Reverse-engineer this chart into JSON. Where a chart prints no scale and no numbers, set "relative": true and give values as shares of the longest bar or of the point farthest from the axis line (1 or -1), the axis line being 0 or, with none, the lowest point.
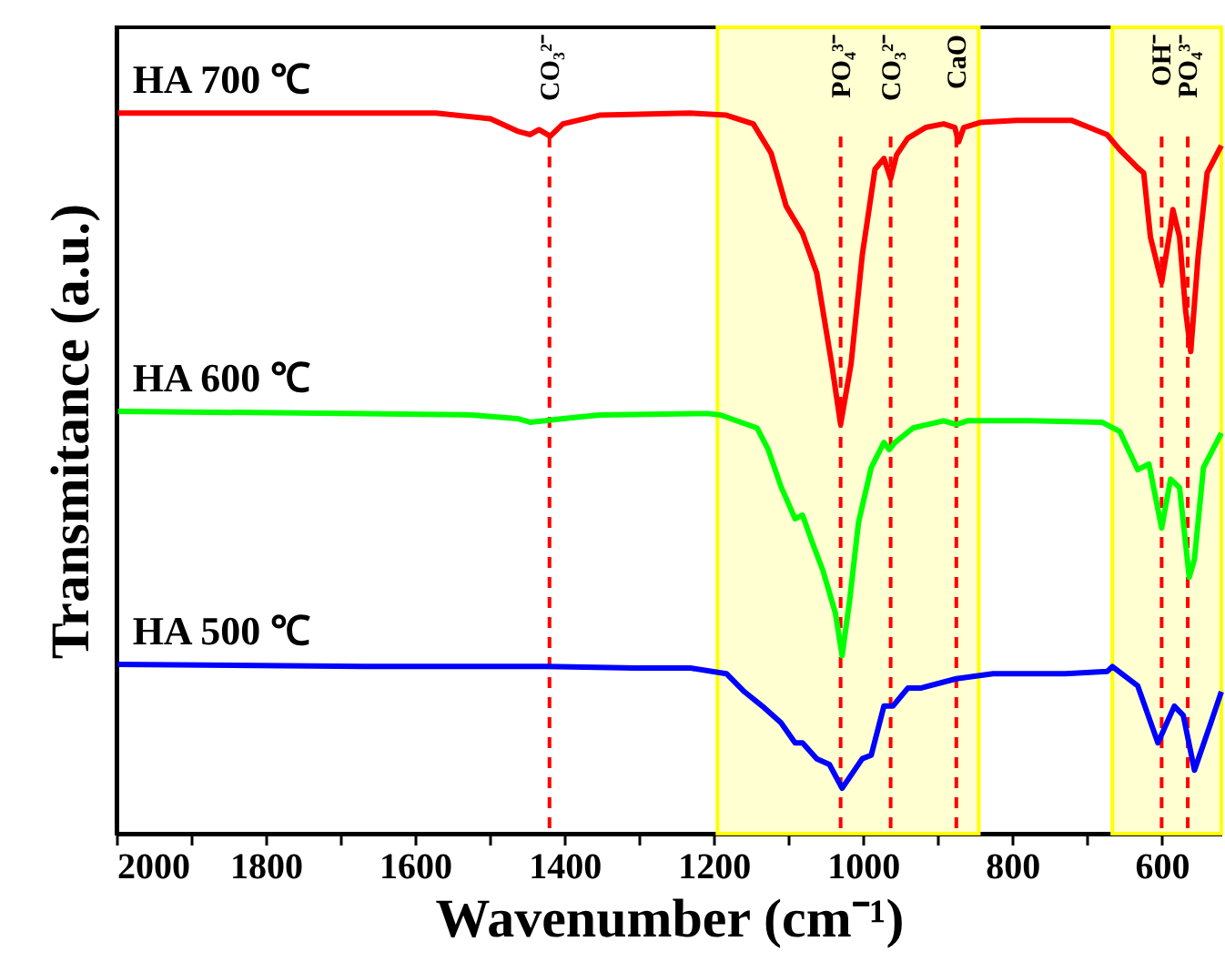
{
  "chart_data": {
    "type": "line",
    "relative": true,
    "xlabel": "Wavenumber (cm⁻¹)",
    "ylabel": "Transmitance (a.u.)",
    "xlim": [
      2000,
      520
    ],
    "xticks": [
      2000,
      {
        "value": 1900,
        "label": null
      },
      1800,
      {
        "value": 1700,
        "label": null
      },
      1600,
      {
        "value": 1500,
        "label": null
      },
      1400,
      {
        "value": 1300,
        "label": null
      },
      1200,
      {
        "value": 1100,
        "label": null
      },
      1000,
      {
        "value": 900,
        "label": null
      },
      800,
      {
        "value": 700,
        "label": null
      },
      600
    ],
    "tick_labels": "x",
    "grid": false,
    "marker": "none",
    "line_style": "solid",
    "series": [
      {
        "name": "HA 700 ℃",
        "color": "#ff0000",
        "x": [
          1998,
          1791,
          1572,
          1499,
          1463,
          1446,
          1434,
          1419,
          1402,
          1353,
          1232,
          1183,
          1147,
          1123,
          1103,
          1081,
          1062,
          1042,
          1030,
          1016,
          1001,
          984,
          972,
          963,
          955,
          940,
          916,
          892,
          877,
          872,
          865,
          843,
          794,
          721,
          697,
          673,
          656,
          632,
          624,
          615,
          600,
          588,
          585,
          576,
          568,
          561,
          551,
          539,
          520
        ],
        "values": [
          1.0,
          1.0,
          1.0,
          0.992,
          0.975,
          0.97,
          0.977,
          0.968,
          0.985,
          0.997,
          1.0,
          0.997,
          0.985,
          0.944,
          0.871,
          0.833,
          0.778,
          0.652,
          0.568,
          0.652,
          0.803,
          0.922,
          0.937,
          0.909,
          0.942,
          0.965,
          0.98,
          0.985,
          0.98,
          0.96,
          0.98,
          0.987,
          0.99,
          0.99,
          0.98,
          0.97,
          0.949,
          0.924,
          0.917,
          0.828,
          0.765,
          0.841,
          0.866,
          0.828,
          0.727,
          0.669,
          0.803,
          0.917,
          0.955
        ]
      },
      {
        "name": "HA 600 ℃",
        "color": "#00ff00",
        "x": [
          1998,
          1669,
          1524,
          1463,
          1446,
          1426,
          1402,
          1353,
          1208,
          1191,
          1142,
          1127,
          1110,
          1091,
          1081,
          1069,
          1054,
          1037,
          1028,
          1018,
          1006,
          989,
          972,
          965,
          957,
          933,
          892,
          875,
          860,
          777,
          680,
          656,
          632,
          617,
          600,
          588,
          576,
          563,
          556,
          544,
          520
        ],
        "values": [
          0.586,
          0.583,
          0.581,
          0.576,
          0.571,
          0.573,
          0.576,
          0.581,
          0.583,
          0.581,
          0.563,
          0.533,
          0.482,
          0.437,
          0.442,
          0.407,
          0.366,
          0.306,
          0.247,
          0.323,
          0.432,
          0.508,
          0.543,
          0.533,
          0.543,
          0.563,
          0.573,
          0.568,
          0.573,
          0.573,
          0.571,
          0.558,
          0.505,
          0.513,
          0.424,
          0.492,
          0.48,
          0.356,
          0.381,
          0.508,
          0.556
        ]
      },
      {
        "name": "HA 500 ℃",
        "color": "#0000ff",
        "x": [
          1998,
          1669,
          1426,
          1305,
          1232,
          1183,
          1159,
          1135,
          1110,
          1091,
          1081,
          1062,
          1045,
          1028,
          1001,
          989,
          972,
          960,
          940,
          923,
          875,
          826,
          729,
          673,
          666,
          632,
          605,
          583,
          571,
          556,
          534,
          520
        ],
        "values": [
          0.235,
          0.232,
          0.232,
          0.23,
          0.23,
          0.222,
          0.197,
          0.177,
          0.154,
          0.126,
          0.126,
          0.104,
          0.096,
          0.063,
          0.104,
          0.109,
          0.177,
          0.177,
          0.202,
          0.202,
          0.215,
          0.222,
          0.222,
          0.225,
          0.232,
          0.205,
          0.126,
          0.177,
          0.164,
          0.088,
          0.154,
          0.197
        ]
      }
    ],
    "ref_lines": [
      {
        "axis": "x",
        "value": 1420,
        "label": "CO₃²⁻",
        "color": "#ff0000",
        "line_style": "dashed"
      },
      {
        "axis": "x",
        "value": 1030,
        "label": "PO₄³⁻",
        "color": "#ff0000",
        "line_style": "dashed"
      },
      {
        "axis": "x",
        "value": 963,
        "label": "CO₃²⁻",
        "color": "#ff0000",
        "line_style": "dashed"
      },
      {
        "axis": "x",
        "value": 875,
        "label": "CaO",
        "color": "#ff0000",
        "line_style": "dashed"
      },
      {
        "axis": "x",
        "value": 600,
        "label": "OH⁻",
        "color": "#ff0000",
        "line_style": "dashed"
      },
      {
        "axis": "x",
        "value": 565,
        "label": "PO₄³⁻",
        "color": "#ff0000",
        "line_style": "dashed"
      }
    ],
    "bands": [
      {
        "axis": "x",
        "from": 1195,
        "to": 845,
        "color": "#ffff00"
      },
      {
        "axis": "x",
        "from": 666,
        "to": 520,
        "color": "#ffff00"
      }
    ]
  }
}
